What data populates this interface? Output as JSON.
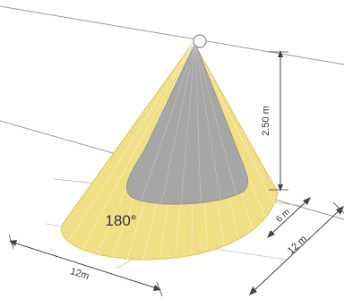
{
  "diagram": {
    "angle_label": "180°",
    "height_label": "2.50 m",
    "depth_label": "6 m",
    "range_label": "12 m",
    "width_label": "12m"
  },
  "colors": {
    "cone_fill": "#f1df86",
    "cone_edge": "#dcc35a",
    "core_fill": "#a6a6a6",
    "lines": "#8a8a8a",
    "dim": "#444444"
  }
}
